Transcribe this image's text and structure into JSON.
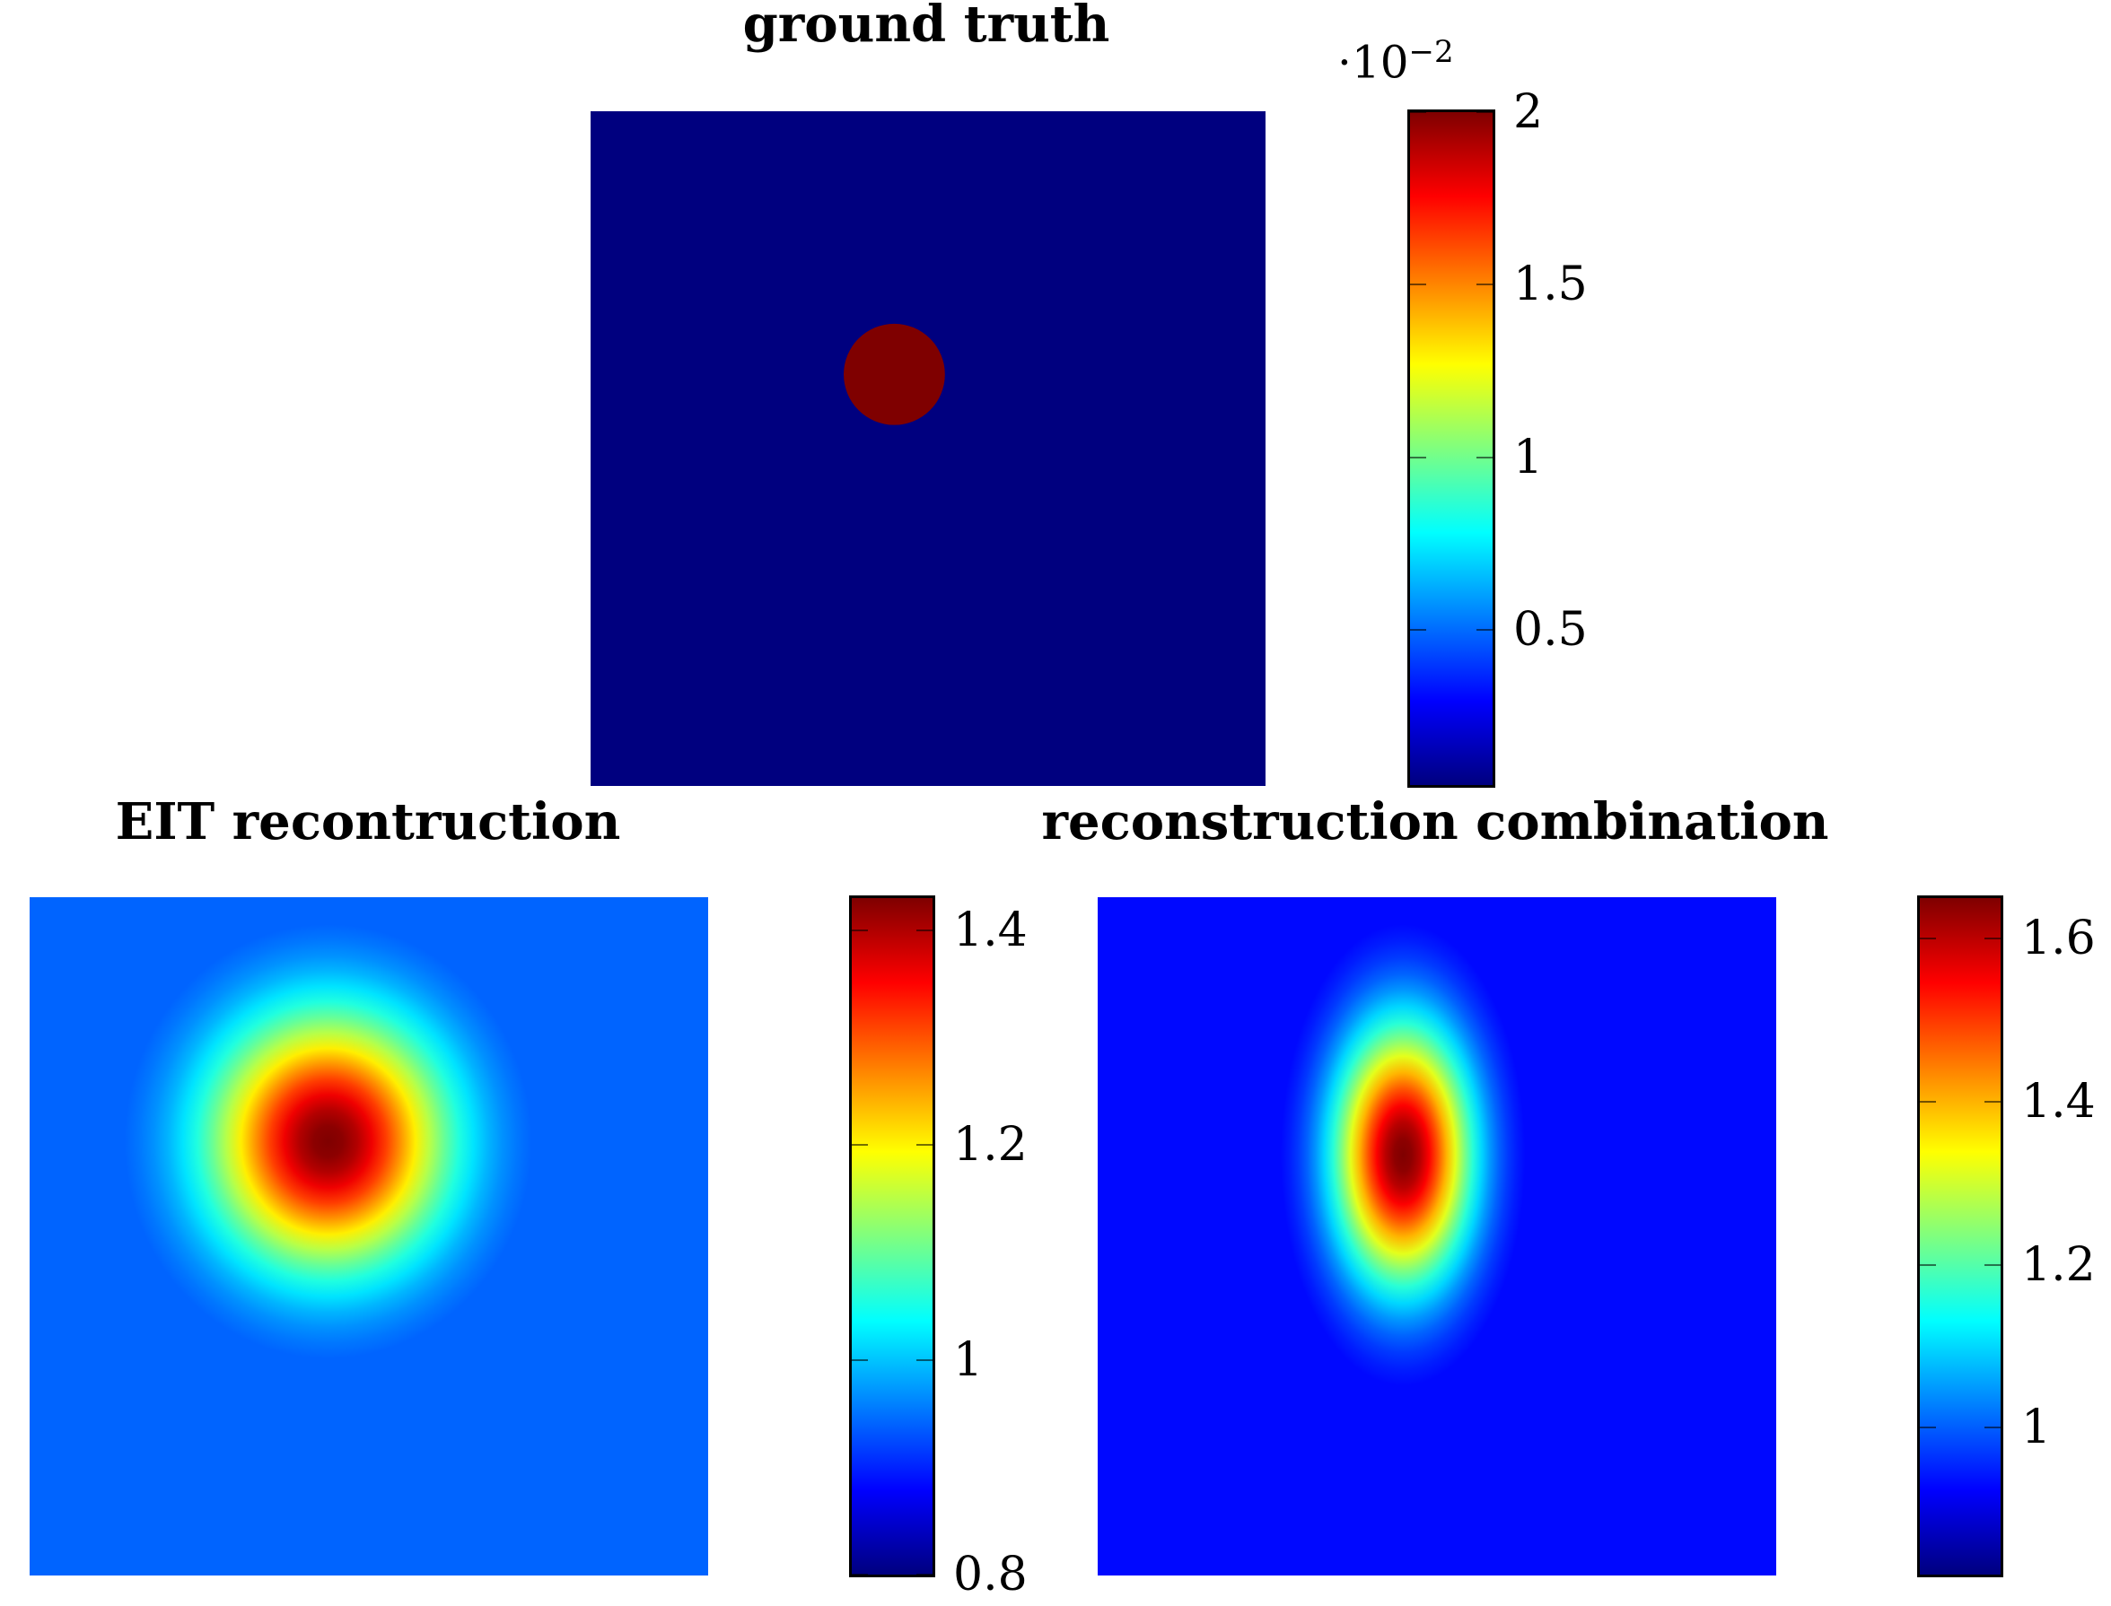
{
  "colormap": [
    "#00007f",
    "#0000ff",
    "#007fff",
    "#00ffff",
    "#7fff7f",
    "#ffff00",
    "#ff7f00",
    "#ff0000",
    "#7f0000"
  ],
  "chart_data": [
    {
      "type": "heatmap",
      "title": "ground truth",
      "colorbar": {
        "min": 0.0005,
        "max": 0.02,
        "multiplier_base": "·10",
        "multiplier_exp": "−2",
        "ticks": [
          {
            "value": 0.02,
            "label": "2"
          },
          {
            "value": 0.015,
            "label": "1.5"
          },
          {
            "value": 0.01,
            "label": "1"
          },
          {
            "value": 0.005,
            "label": "0.5"
          }
        ]
      },
      "background_value": 0.0005,
      "inclusion": {
        "shape": "disk",
        "value": 0.02,
        "center": [
          0.45,
          0.61
        ],
        "radius": 0.075
      }
    },
    {
      "type": "heatmap",
      "title": "EIT recontruction",
      "colorbar": {
        "min": 0.8,
        "max": 1.43,
        "ticks": [
          {
            "value": 1.4,
            "label": "1.4"
          },
          {
            "value": 1.2,
            "label": "1.2"
          },
          {
            "value": 1.0,
            "label": "1"
          },
          {
            "value": 0.8,
            "label": "0.8"
          }
        ]
      },
      "background_value": 0.92,
      "peak": {
        "value": 1.43,
        "center": [
          0.44,
          0.64
        ],
        "spread": [
          0.3,
          0.32
        ]
      }
    },
    {
      "type": "heatmap",
      "title": "reconstruction combination",
      "colorbar": {
        "min": 0.82,
        "max": 1.65,
        "ticks": [
          {
            "value": 1.6,
            "label": "1.6"
          },
          {
            "value": 1.4,
            "label": "1.4"
          },
          {
            "value": 1.2,
            "label": "1.2"
          },
          {
            "value": 1.0,
            "label": "1"
          }
        ]
      },
      "background_value": 0.9,
      "peak": {
        "value": 1.65,
        "center": [
          0.45,
          0.62
        ],
        "spread": [
          0.18,
          0.34
        ]
      }
    }
  ]
}
